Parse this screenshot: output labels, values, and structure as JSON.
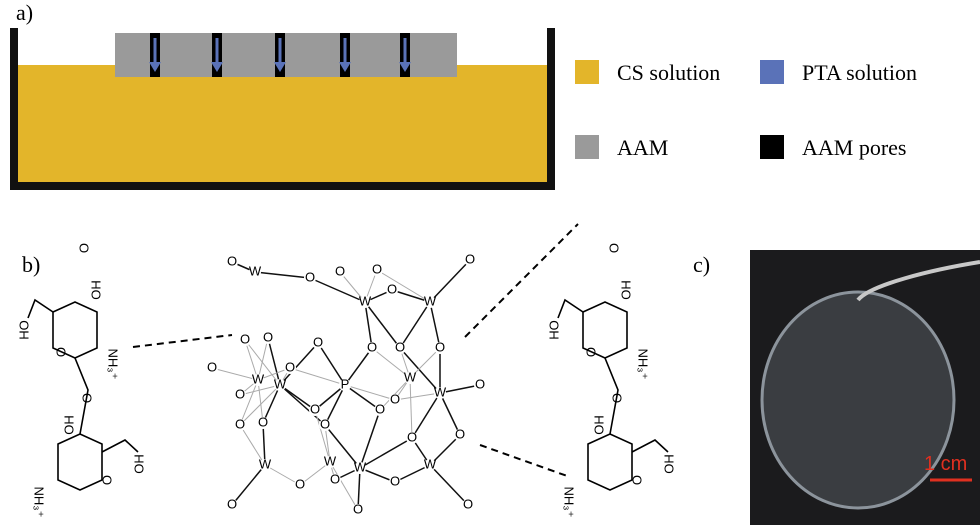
{
  "panel_a": {
    "label": "a)",
    "legend": [
      {
        "label": "CS solution",
        "color": "#e3b52a"
      },
      {
        "label": "PTA solution",
        "color": "#5a72b8"
      },
      {
        "label": "AAM",
        "color": "#9a9a9a"
      },
      {
        "label": "AAM pores",
        "color": "#000000"
      }
    ]
  },
  "panel_b": {
    "label": "b)",
    "chitosan_left": [
      "O",
      "OH",
      "HO",
      "O",
      "NH₃⁺",
      "O",
      "OH",
      "O",
      "OH",
      "NH₃⁺"
    ],
    "chitosan_right": [
      "O",
      "OH",
      "HO",
      "O",
      "NH₃⁺",
      "O",
      "OH",
      "O",
      "OH",
      "NH₃⁺"
    ],
    "cluster": [
      "W",
      "W",
      "W",
      "W",
      "W",
      "W",
      "W",
      "W",
      "P",
      "O",
      "O",
      "O",
      "O",
      "O",
      "O",
      "O",
      "O",
      "O",
      "O",
      "O",
      "O",
      "O",
      "O",
      "O",
      "O",
      "O",
      "O",
      "O",
      "O",
      "O",
      "O",
      "O",
      "O",
      "O",
      "O",
      "O",
      "O",
      "W",
      "W",
      "W",
      "O",
      "O"
    ]
  },
  "panel_c": {
    "label": "c)",
    "scale_bar": "1 cm"
  }
}
